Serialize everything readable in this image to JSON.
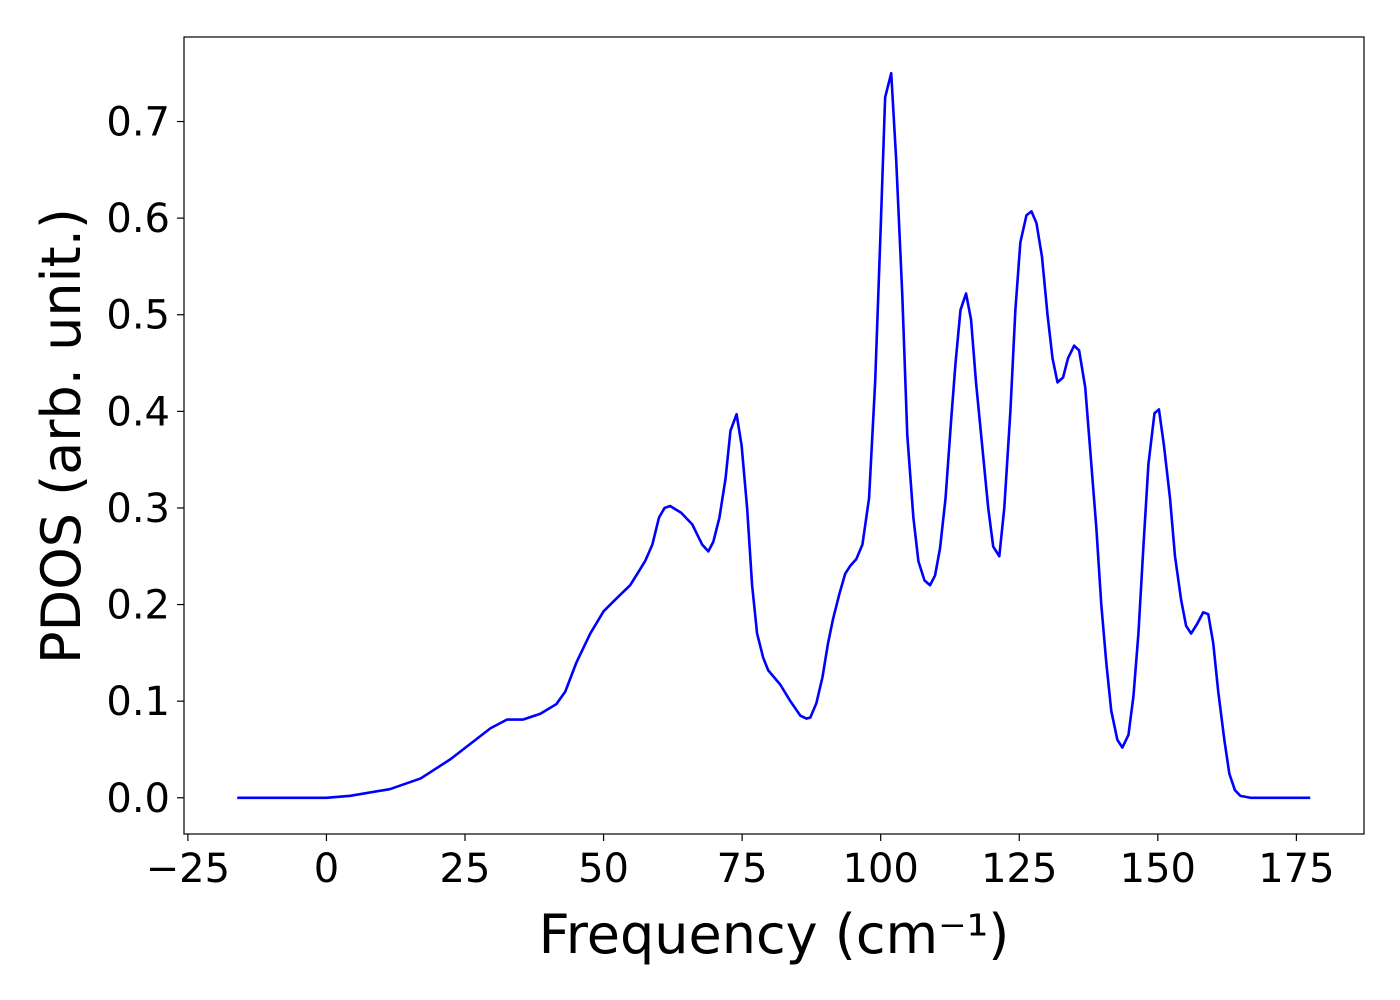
{
  "chart_data": {
    "type": "line",
    "xlabel": "Frequency (cm⁻¹)",
    "ylabel": "PDOS (arb. unit.)",
    "color": "#0000ff",
    "x": [
      -16.1,
      0,
      4.3,
      11.5,
      17,
      22.4,
      29.6,
      32.6,
      35.5,
      38.6,
      41.5,
      43.1,
      45.1,
      47.6,
      50,
      52.1,
      54.8,
      56.1,
      57.5,
      58.8,
      60,
      61,
      62,
      64,
      66,
      67.8,
      68.9,
      69.8,
      70.9,
      72,
      72.9,
      74.0,
      74.9,
      75.9,
      76.8,
      77.7,
      78.8,
      79.7,
      81.9,
      83.7,
      85.5,
      86.6,
      87.3,
      88.4,
      89.5,
      90.5,
      91.4,
      92.5,
      93.6,
      94.5,
      95.6,
      96.7,
      97.9,
      99,
      100,
      100.8,
      101.9,
      102.8,
      103.9,
      104.8,
      105.9,
      106.8,
      107.9,
      108.9,
      109.8,
      110.7,
      111.7,
      112.7,
      113.5,
      114.4,
      115.4,
      116.3,
      117.2,
      118.3,
      119.4,
      120.3,
      121.4,
      122.3,
      123.4,
      124.3,
      125.2,
      126.3,
      127.2,
      128.1,
      129.1,
      130.1,
      131,
      131.9,
      132.9,
      133.8,
      134.9,
      135.8,
      136.9,
      137.8,
      138.9,
      139.8,
      140.7,
      141.6,
      142.7,
      143.6,
      144.7,
      145.6,
      146.5,
      147.4,
      148.3,
      149.4,
      150.2,
      151.1,
      152.2,
      153.1,
      154.2,
      155.1,
      156,
      157.1,
      158.2,
      159.1,
      160,
      160.9,
      162,
      162.9,
      163.9,
      164.9,
      166.7,
      177.5
    ],
    "values": [
      0,
      0,
      0.002,
      0.009,
      0.02,
      0.04,
      0.072,
      0.081,
      0.081,
      0.087,
      0.097,
      0.11,
      0.14,
      0.17,
      0.193,
      0.205,
      0.22,
      0.232,
      0.245,
      0.262,
      0.29,
      0.3,
      0.302,
      0.295,
      0.283,
      0.262,
      0.255,
      0.265,
      0.29,
      0.33,
      0.38,
      0.397,
      0.365,
      0.3,
      0.22,
      0.17,
      0.145,
      0.132,
      0.117,
      0.1,
      0.085,
      0.082,
      0.083,
      0.098,
      0.125,
      0.16,
      0.185,
      0.21,
      0.232,
      0.24,
      0.247,
      0.262,
      0.31,
      0.43,
      0.59,
      0.725,
      0.75,
      0.66,
      0.52,
      0.375,
      0.29,
      0.245,
      0.225,
      0.22,
      0.23,
      0.258,
      0.31,
      0.39,
      0.45,
      0.505,
      0.522,
      0.495,
      0.43,
      0.365,
      0.3,
      0.26,
      0.25,
      0.3,
      0.4,
      0.505,
      0.575,
      0.603,
      0.607,
      0.595,
      0.56,
      0.5,
      0.455,
      0.43,
      0.435,
      0.455,
      0.468,
      0.463,
      0.425,
      0.36,
      0.28,
      0.2,
      0.14,
      0.09,
      0.06,
      0.052,
      0.065,
      0.105,
      0.17,
      0.26,
      0.345,
      0.398,
      0.402,
      0.365,
      0.31,
      0.25,
      0.205,
      0.178,
      0.17,
      0.18,
      0.192,
      0.19,
      0.16,
      0.11,
      0.06,
      0.025,
      0.008,
      0.002,
      0,
      0
    ],
    "xlim": [
      -25.7,
      187.2
    ],
    "ylim": [
      -0.0375,
      0.7875
    ],
    "xticks": [
      {
        "value": -25,
        "label": "−25"
      },
      0,
      25,
      50,
      75,
      100,
      125,
      150,
      175
    ],
    "yticks": [
      {
        "value": 0,
        "label": "0.0"
      },
      0.1,
      0.2,
      0.3,
      0.4,
      0.5,
      0.6,
      0.7
    ],
    "grid": false
  }
}
